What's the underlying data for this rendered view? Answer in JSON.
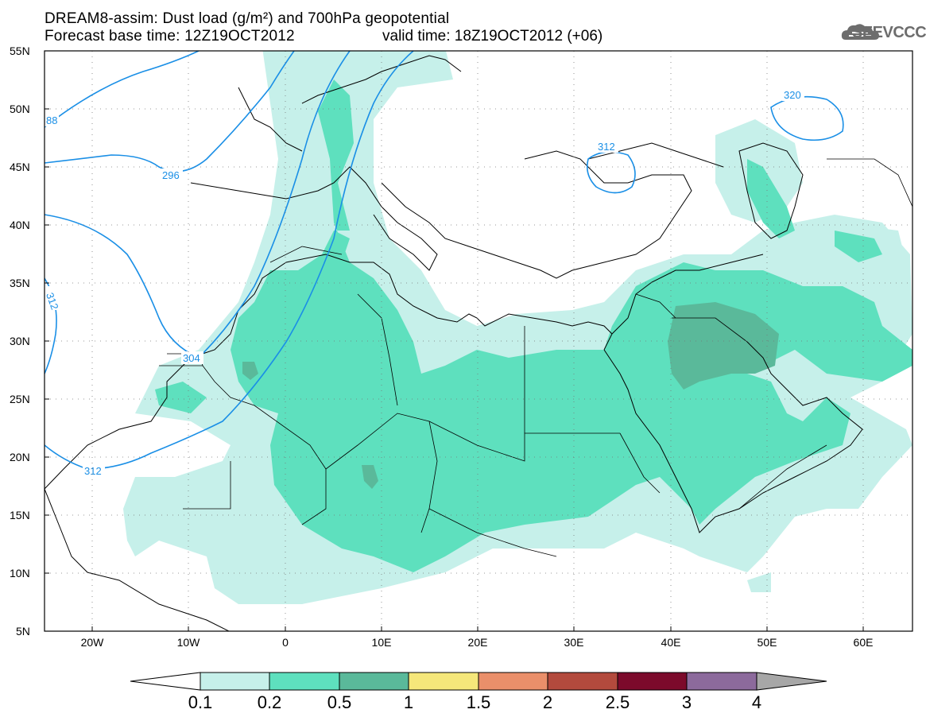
{
  "header": {
    "title_line1": "DREAM8-assim: Dust load (g/m²) and 700hPa geopotential",
    "title_line2": "Forecast base time: 12Z19OCT2012",
    "valid_time": "valid time: 18Z19OCT2012 (+06)",
    "logo_text": "SEEVCCC"
  },
  "map": {
    "lat_labels": [
      "55N",
      "50N",
      "45N",
      "40N",
      "35N",
      "30N",
      "25N",
      "20N",
      "15N",
      "10N",
      "5N"
    ],
    "lon_labels": [
      "20W",
      "10W",
      "0",
      "10E",
      "20E",
      "30E",
      "40E",
      "50E",
      "60E"
    ],
    "contour_labels": [
      "88",
      "296",
      "312",
      "304",
      "312",
      "312",
      "320"
    ],
    "contour_color": "#1a8fe6"
  },
  "colorbar": {
    "labels": [
      "0.1",
      "0.2",
      "0.5",
      "1",
      "1.5",
      "2",
      "2.5",
      "3",
      "4"
    ],
    "colors": [
      "#ffffff",
      "#c6f0ea",
      "#5ee0be",
      "#5ab99a",
      "#f5e77a",
      "#ea8f6a",
      "#b34a3d",
      "#7c0a2b",
      "#8c6a9c",
      "#a7a7a7"
    ]
  }
}
